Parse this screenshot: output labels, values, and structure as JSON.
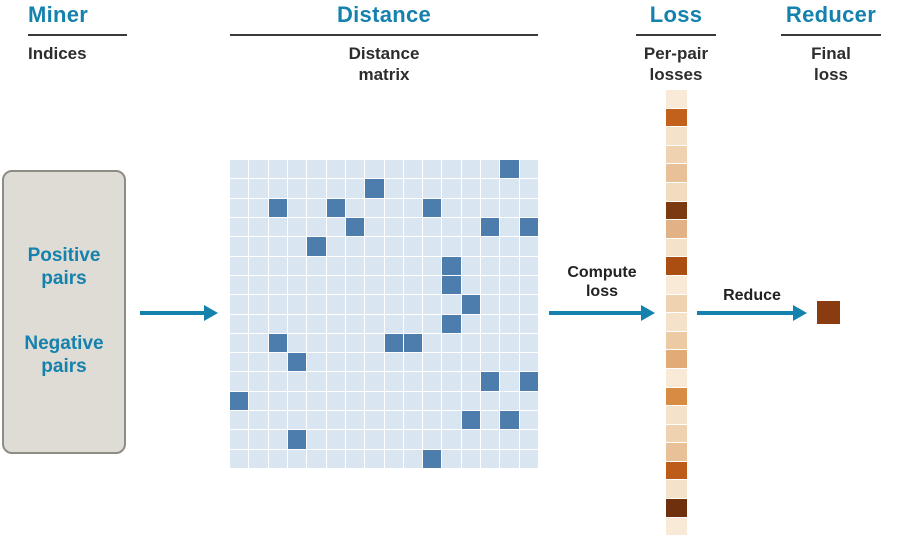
{
  "header": {
    "columns": [
      {
        "title": "Miner",
        "subtitle": "Indices"
      },
      {
        "title": "Distance",
        "subtitle": "Distance\nmatrix"
      },
      {
        "title": "Loss",
        "subtitle": "Per-pair\nlosses"
      },
      {
        "title": "Reducer",
        "subtitle": "Final\nloss"
      }
    ]
  },
  "miner_box": {
    "positive": "Positive\npairs",
    "negative": "Negative\npairs"
  },
  "arrow_labels": {
    "compute": "Compute\nloss",
    "reduce": "Reduce"
  },
  "colors": {
    "accent": "#1581ad",
    "rule": "#3a3a3a",
    "box_fill": "#dedcd4",
    "box_border": "#8d8d85",
    "matrix_base": "#d9e6f2",
    "matrix_mined": "#4d7dad",
    "final_loss": "#8a3c10"
  },
  "matrix": {
    "grid_size": 16,
    "mined_cells": [
      [
        14,
        0
      ],
      [
        7,
        1
      ],
      [
        2,
        2
      ],
      [
        5,
        2
      ],
      [
        10,
        2
      ],
      [
        6,
        3
      ],
      [
        13,
        3
      ],
      [
        15,
        3
      ],
      [
        4,
        4
      ],
      [
        11,
        5
      ],
      [
        11,
        6
      ],
      [
        12,
        7
      ],
      [
        11,
        8
      ],
      [
        2,
        9
      ],
      [
        8,
        9
      ],
      [
        9,
        9
      ],
      [
        3,
        10
      ],
      [
        13,
        11
      ],
      [
        15,
        11
      ],
      [
        0,
        12
      ],
      [
        12,
        13
      ],
      [
        14,
        13
      ],
      [
        3,
        14
      ],
      [
        10,
        15
      ]
    ]
  },
  "loss_strip": {
    "colors": [
      "#f8ead7",
      "#c2611c",
      "#f5e2ca",
      "#efd2b0",
      "#e8c198",
      "#f2dcc0",
      "#7c3a10",
      "#e2b286",
      "#f5e2ca",
      "#aa4e12",
      "#f8ead7",
      "#efd2b0",
      "#f5e2ca",
      "#eccaa4",
      "#e0ab77",
      "#f8ead7",
      "#d88b43",
      "#f5e2ca",
      "#efd2b0",
      "#e8c198",
      "#bd5c18",
      "#f5e2ca",
      "#6f300d",
      "#f8ead7"
    ]
  }
}
